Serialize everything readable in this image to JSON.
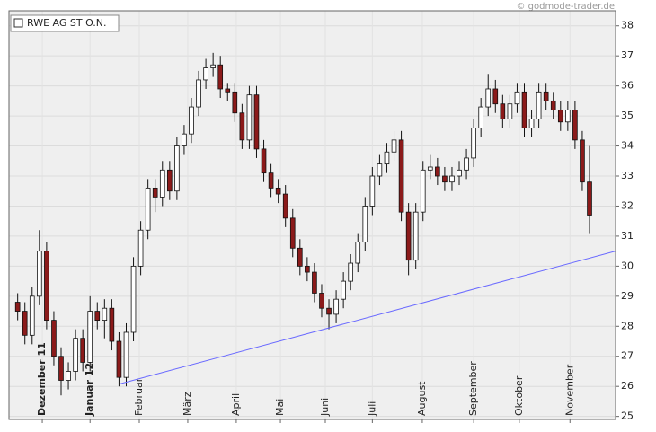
{
  "chart_data": {
    "type": "candlestick",
    "title": "RWE AG ST O.N.",
    "watermark": "© godmode-trader.de",
    "series": {
      "open": [
        28.8,
        28.5,
        27.7,
        29,
        30.5,
        28.2,
        27,
        26.2,
        26.5,
        27.6,
        26.8,
        28.5,
        28.2,
        28.6,
        27.5,
        26.3,
        27.8,
        30,
        31.2,
        32.6,
        32.3,
        33.2,
        32.5,
        34,
        34.4,
        35.3,
        36.2,
        36.6,
        36.7,
        35.9,
        35.8,
        35.1,
        34.2,
        35.7,
        33.9,
        33.1,
        32.6,
        32.4,
        31.6,
        30.6,
        30,
        29.8,
        29.1,
        28.6,
        28.4,
        28.9,
        29.5,
        30.1,
        30.8,
        32,
        33,
        33.4,
        33.8,
        34.2,
        31.8,
        30.2,
        31.8,
        33.2,
        33.3,
        33,
        32.8,
        33,
        33.2,
        33.6,
        34.6,
        35.3,
        35.9,
        35.4,
        34.9,
        35.4,
        35.8,
        34.6,
        34.9,
        35.8,
        35.5,
        35.2,
        34.8,
        35.2,
        34.2,
        32.8
      ],
      "high": [
        29.1,
        28.8,
        29.3,
        31.2,
        30.8,
        28.5,
        27.3,
        26.8,
        27.9,
        27.9,
        29,
        28.8,
        28.9,
        28.9,
        27.8,
        28.1,
        30.3,
        31.5,
        32.9,
        32.9,
        33.5,
        33.5,
        34.3,
        34.7,
        35.6,
        36.5,
        36.9,
        37.1,
        37,
        36.1,
        36.1,
        35.4,
        36,
        36,
        34.2,
        33.4,
        32.9,
        32.7,
        31.9,
        30.9,
        30.3,
        30.1,
        29.4,
        28.9,
        29.2,
        29.8,
        30.4,
        31.1,
        32.3,
        33.3,
        33.7,
        34.1,
        34.5,
        34.5,
        32.1,
        32.1,
        33.5,
        33.7,
        33.6,
        33.3,
        33.3,
        33.5,
        33.9,
        34.9,
        35.6,
        36.4,
        36.2,
        35.7,
        35.7,
        36.1,
        36.1,
        35.2,
        36.1,
        36.1,
        35.8,
        35.5,
        35.5,
        35.5,
        34.5,
        34
      ],
      "low": [
        28.2,
        27.4,
        27.4,
        28.7,
        27.9,
        26.7,
        25.7,
        25.9,
        26.2,
        26.5,
        26.5,
        27.9,
        27.6,
        27.2,
        26,
        26,
        27.5,
        29.7,
        30.9,
        31.8,
        32,
        32.2,
        32.2,
        33.7,
        34.1,
        35,
        35.9,
        36.3,
        35.6,
        35.5,
        34.8,
        33.9,
        33.9,
        33.6,
        32.8,
        32.3,
        32.1,
        31.3,
        30.3,
        29.7,
        29.5,
        28.8,
        28.3,
        27.9,
        28.1,
        28.6,
        29.2,
        29.8,
        30.5,
        31.7,
        32.7,
        33.1,
        33.5,
        31.5,
        29.7,
        29.9,
        31.5,
        32.9,
        32.7,
        32.5,
        32.5,
        32.7,
        32.9,
        33.3,
        34.3,
        35,
        35.1,
        34.6,
        34.6,
        35.1,
        34.3,
        34.3,
        34.6,
        35.2,
        34.9,
        34.5,
        34.5,
        33.9,
        32.5,
        31.1
      ],
      "close": [
        28.5,
        27.7,
        29,
        30.5,
        28.2,
        27,
        26.2,
        26.5,
        27.6,
        26.8,
        28.5,
        28.2,
        28.6,
        27.5,
        26.3,
        27.8,
        30,
        31.2,
        32.6,
        32.3,
        33.2,
        32.5,
        34,
        34.4,
        35.3,
        36.2,
        36.6,
        36.7,
        35.9,
        35.8,
        35.1,
        34.2,
        35.7,
        33.9,
        33.1,
        32.6,
        32.4,
        31.6,
        30.6,
        30,
        29.8,
        29.1,
        28.6,
        28.4,
        28.9,
        29.5,
        30.1,
        30.8,
        32,
        33,
        33.4,
        33.8,
        34.2,
        31.8,
        30.2,
        31.8,
        33.2,
        33.3,
        33,
        32.8,
        33,
        33.2,
        33.6,
        34.6,
        35.3,
        35.9,
        35.4,
        34.9,
        35.4,
        35.8,
        34.6,
        34.9,
        35.8,
        35.5,
        35.2,
        34.8,
        35.2,
        34.2,
        32.8,
        31.7
      ]
    },
    "up_color": "#ffffff",
    "down_color": "#8b1a1a",
    "trendline": {
      "x": [
        14.07,
        82.6
      ],
      "y": [
        26.08,
        30.5
      ],
      "color": "#6a6aff"
    },
    "xlim": [
      -1.2,
      82.6
    ],
    "xticks": [
      {
        "value": 3.4,
        "label": "Dezember 11"
      },
      {
        "value": 10.0,
        "label": "Januar 12"
      },
      {
        "value": 16.8,
        "label": "Februar"
      },
      {
        "value": 23.5,
        "label": "März"
      },
      {
        "value": 30.2,
        "label": "April"
      },
      {
        "value": 36.3,
        "label": "Mai"
      },
      {
        "value": 42.5,
        "label": "Juni"
      },
      {
        "value": 49.0,
        "label": "Juli"
      },
      {
        "value": 55.9,
        "label": "August"
      },
      {
        "value": 63.0,
        "label": "September"
      },
      {
        "value": 69.3,
        "label": "Oktober"
      },
      {
        "value": 76.3,
        "label": "November"
      }
    ],
    "xtick_bold": [
      true,
      true,
      false,
      false,
      false,
      false,
      false,
      false,
      false,
      false,
      false,
      false
    ],
    "ylim": [
      24.9,
      38.5
    ],
    "yticks": [
      25,
      26,
      27,
      28,
      29,
      30,
      31,
      32,
      33,
      34,
      35,
      36,
      37,
      38
    ],
    "grid": true
  }
}
